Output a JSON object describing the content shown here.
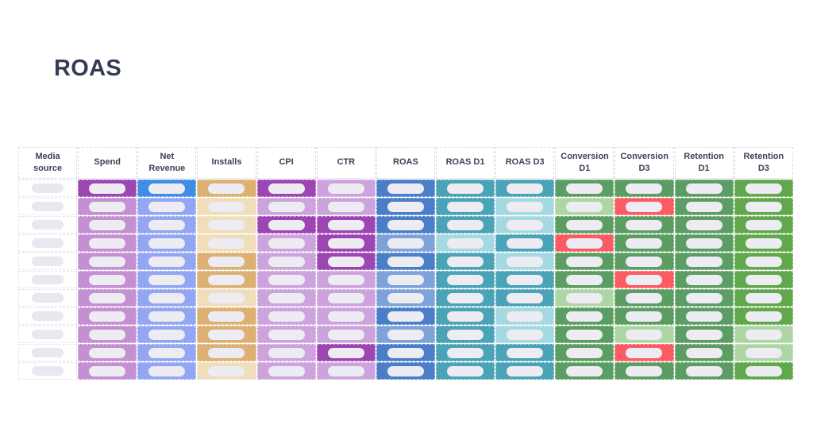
{
  "page": {
    "title": "ROAS",
    "background": "#ffffff"
  },
  "table": {
    "columns": [
      {
        "id": "media-source",
        "label": "Media source"
      },
      {
        "id": "spend",
        "label": "Spend"
      },
      {
        "id": "net-revenue",
        "label": "Net Revenue"
      },
      {
        "id": "installs",
        "label": "Installs"
      },
      {
        "id": "cpi",
        "label": "CPI"
      },
      {
        "id": "ctr",
        "label": "CTR"
      },
      {
        "id": "roas",
        "label": "ROAS"
      },
      {
        "id": "roas-d1",
        "label": "ROAS D1"
      },
      {
        "id": "roas-d3",
        "label": "ROAS D3"
      },
      {
        "id": "conversion-d1",
        "label": "Conversion D1"
      },
      {
        "id": "conversion-d3",
        "label": "Conversion D3"
      },
      {
        "id": "retention-d1",
        "label": "Retention D1"
      },
      {
        "id": "retention-d3",
        "label": "Retention D3"
      }
    ],
    "palette": {
      "white": "#ffffff",
      "purple_dark": "#9d45b3",
      "purple_med": "#c48fd3",
      "purple_light": "#cda3de",
      "blue_bright": "#3f8ee5",
      "periwinkle": "#93a6f3",
      "tan_dark": "#ddb073",
      "tan_light": "#f0ddb9",
      "blue_med": "#4b7ec8",
      "blue_light": "#7ea3da",
      "teal": "#4aa3b7",
      "teal_light": "#a5d9e2",
      "green": "#5c9d63",
      "green_light": "#add6a4",
      "green_bright": "#60a84b",
      "red": "#fb5c63",
      "pill_on_color": "#edecf2",
      "pill_on_white": "#e8e8ee",
      "header_text": "#3c4257",
      "title_text": "#353c55",
      "cell_border": "#d9dae3"
    },
    "cell_value_style": "redacted-pill",
    "rows": [
      [
        "white",
        "purple_dark",
        "blue_bright",
        "tan_dark",
        "purple_dark",
        "purple_light",
        "blue_med",
        "teal",
        "teal",
        "green",
        "green",
        "green",
        "green_bright"
      ],
      [
        "white",
        "purple_med",
        "periwinkle",
        "tan_light",
        "purple_light",
        "purple_light",
        "blue_med",
        "teal",
        "teal_light",
        "green_light",
        "red",
        "green",
        "green_bright"
      ],
      [
        "white",
        "purple_med",
        "periwinkle",
        "tan_light",
        "purple_dark",
        "purple_dark",
        "blue_med",
        "teal",
        "teal_light",
        "green",
        "green",
        "green",
        "green_bright"
      ],
      [
        "white",
        "purple_med",
        "periwinkle",
        "tan_light",
        "purple_light",
        "purple_dark",
        "blue_light",
        "teal_light",
        "teal",
        "red",
        "green",
        "green",
        "green_bright"
      ],
      [
        "white",
        "purple_med",
        "periwinkle",
        "tan_dark",
        "purple_light",
        "purple_dark",
        "blue_med",
        "teal",
        "teal_light",
        "green",
        "green",
        "green",
        "green_bright"
      ],
      [
        "white",
        "purple_med",
        "periwinkle",
        "tan_dark",
        "purple_light",
        "purple_light",
        "blue_light",
        "teal",
        "teal",
        "green",
        "red",
        "green",
        "green_bright"
      ],
      [
        "white",
        "purple_med",
        "periwinkle",
        "tan_light",
        "purple_light",
        "purple_light",
        "blue_light",
        "teal",
        "teal",
        "green_light",
        "green",
        "green",
        "green_bright"
      ],
      [
        "white",
        "purple_med",
        "periwinkle",
        "tan_dark",
        "purple_light",
        "purple_light",
        "blue_med",
        "teal",
        "teal_light",
        "green",
        "green",
        "green",
        "green_bright"
      ],
      [
        "white",
        "purple_med",
        "periwinkle",
        "tan_dark",
        "purple_light",
        "purple_light",
        "blue_light",
        "teal",
        "teal_light",
        "green",
        "green_light",
        "green",
        "green_light"
      ],
      [
        "white",
        "purple_med",
        "periwinkle",
        "tan_dark",
        "purple_light",
        "purple_dark",
        "blue_med",
        "teal",
        "teal",
        "green",
        "red",
        "green",
        "green_light"
      ],
      [
        "white",
        "purple_med",
        "periwinkle",
        "tan_light",
        "purple_light",
        "purple_light",
        "blue_med",
        "teal",
        "teal",
        "green",
        "green",
        "green",
        "green_bright"
      ]
    ]
  }
}
